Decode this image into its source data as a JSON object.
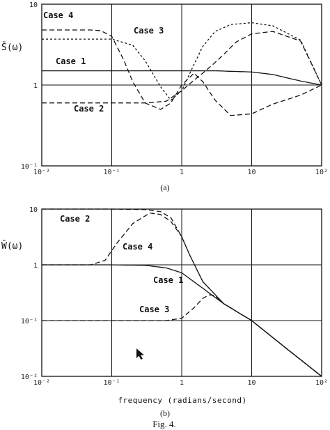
{
  "figure_caption": "Fig. 4.",
  "x_axis_label": "frequency (radians/second)",
  "chart_data": [
    {
      "type": "line",
      "panel_label": "(a)",
      "ylabel": "S̄(ω)",
      "xscale": "log",
      "yscale": "log",
      "xlim": [
        0.01,
        100
      ],
      "ylim": [
        0.1,
        10
      ],
      "grid": true,
      "x_ticks": [
        "10⁻²",
        "10⁻¹",
        "1",
        "10",
        "10²"
      ],
      "y_ticks": [
        "10",
        "1",
        "10⁻¹"
      ],
      "series": [
        {
          "name": "Case 1",
          "style": "solid",
          "x": [
            0.01,
            0.1,
            1,
            3,
            10,
            20,
            50,
            100
          ],
          "y": [
            1.5,
            1.5,
            1.5,
            1.5,
            1.45,
            1.35,
            1.12,
            1.0
          ]
        },
        {
          "name": "Case 2",
          "style": "dashed",
          "x": [
            0.01,
            0.1,
            0.3,
            0.6,
            1,
            1.5,
            2,
            3,
            4,
            6,
            10,
            20,
            50,
            100
          ],
          "y": [
            0.6,
            0.6,
            0.6,
            0.63,
            0.85,
            1.15,
            1.4,
            1.9,
            2.4,
            3.4,
            4.3,
            4.6,
            3.5,
            1.0
          ]
        },
        {
          "name": "Case 3",
          "style": "dotted",
          "x": [
            0.01,
            0.05,
            0.1,
            0.2,
            0.3,
            0.5,
            0.7,
            1,
            1.5,
            2,
            3,
            5,
            10,
            20,
            50,
            100
          ],
          "y": [
            3.7,
            3.7,
            3.7,
            3.1,
            2.0,
            0.95,
            0.65,
            0.85,
            1.8,
            3.0,
            4.6,
            5.6,
            5.9,
            5.4,
            3.6,
            1.0
          ]
        },
        {
          "name": "Case 4",
          "style": "dashed",
          "x": [
            0.01,
            0.05,
            0.07,
            0.1,
            0.15,
            0.2,
            0.3,
            0.5,
            0.7,
            1,
            1.5,
            2,
            3,
            5,
            10,
            20,
            50,
            100
          ],
          "y": [
            4.8,
            4.8,
            4.7,
            4.0,
            2.0,
            1.1,
            0.6,
            0.5,
            0.6,
            1.0,
            1.4,
            1.1,
            0.65,
            0.42,
            0.44,
            0.58,
            0.75,
            1.0
          ]
        }
      ],
      "annotations": [
        {
          "text": "Case 4",
          "x": 0.015,
          "y": 7.5
        },
        {
          "text": "Case 3",
          "x": 0.3,
          "y": 4.6
        },
        {
          "text": "Case 1",
          "x": 0.02,
          "y": 1.8
        },
        {
          "text": "Case 2",
          "x": 0.04,
          "y": 0.45
        }
      ]
    },
    {
      "type": "line",
      "panel_label": "(b)",
      "ylabel": "W̄(ω)",
      "xscale": "log",
      "yscale": "log",
      "xlim": [
        0.01,
        100
      ],
      "ylim": [
        0.01,
        10
      ],
      "grid": true,
      "x_ticks": [
        "10⁻²",
        "10⁻¹",
        "1",
        "10",
        "10²"
      ],
      "y_ticks": [
        "10",
        "1",
        "10⁻¹",
        "10⁻²"
      ],
      "series": [
        {
          "name": "Case 1",
          "style": "solid",
          "x": [
            0.01,
            0.1,
            0.3,
            0.6,
            1,
            2,
            4,
            10,
            30,
            100
          ],
          "y": [
            1.0,
            1.0,
            0.98,
            0.88,
            0.72,
            0.38,
            0.2,
            0.1,
            0.033,
            0.01
          ]
        },
        {
          "name": "Case 2",
          "style": "dashed",
          "x": [
            0.01,
            0.1,
            0.3,
            0.5,
            0.7,
            1,
            1.3,
            2,
            4,
            10,
            30,
            100
          ],
          "y": [
            10,
            10,
            9.8,
            9.0,
            7.0,
            3.2,
            1.5,
            0.5,
            0.2,
            0.1,
            0.033,
            0.01
          ]
        },
        {
          "name": "Case 3",
          "style": "dashed",
          "x": [
            0.01,
            0.1,
            0.3,
            0.6,
            1,
            1.5,
            2,
            2.5,
            3,
            4,
            10,
            30,
            100
          ],
          "y": [
            0.1,
            0.1,
            0.1,
            0.1,
            0.11,
            0.17,
            0.25,
            0.29,
            0.28,
            0.2,
            0.1,
            0.033,
            0.01
          ]
        },
        {
          "name": "Case 4",
          "style": "dashed",
          "x": [
            0.01,
            0.05,
            0.08,
            0.12,
            0.2,
            0.35,
            0.5,
            0.7,
            1,
            1.3,
            2,
            4,
            10,
            30,
            100
          ],
          "y": [
            1.0,
            1.0,
            1.2,
            2.5,
            5.5,
            8.5,
            8.0,
            6.0,
            3.2,
            1.5,
            0.5,
            0.2,
            0.1,
            0.033,
            0.01
          ]
        }
      ],
      "annotations": [
        {
          "text": "Case 2",
          "x": 0.025,
          "y": 6.5
        },
        {
          "text": "Case 4",
          "x": 0.18,
          "y": 2.2
        },
        {
          "text": "Case 1",
          "x": 1.3,
          "y": 0.55
        },
        {
          "text": "Case 3",
          "x": 0.35,
          "y": 0.14
        }
      ]
    }
  ]
}
